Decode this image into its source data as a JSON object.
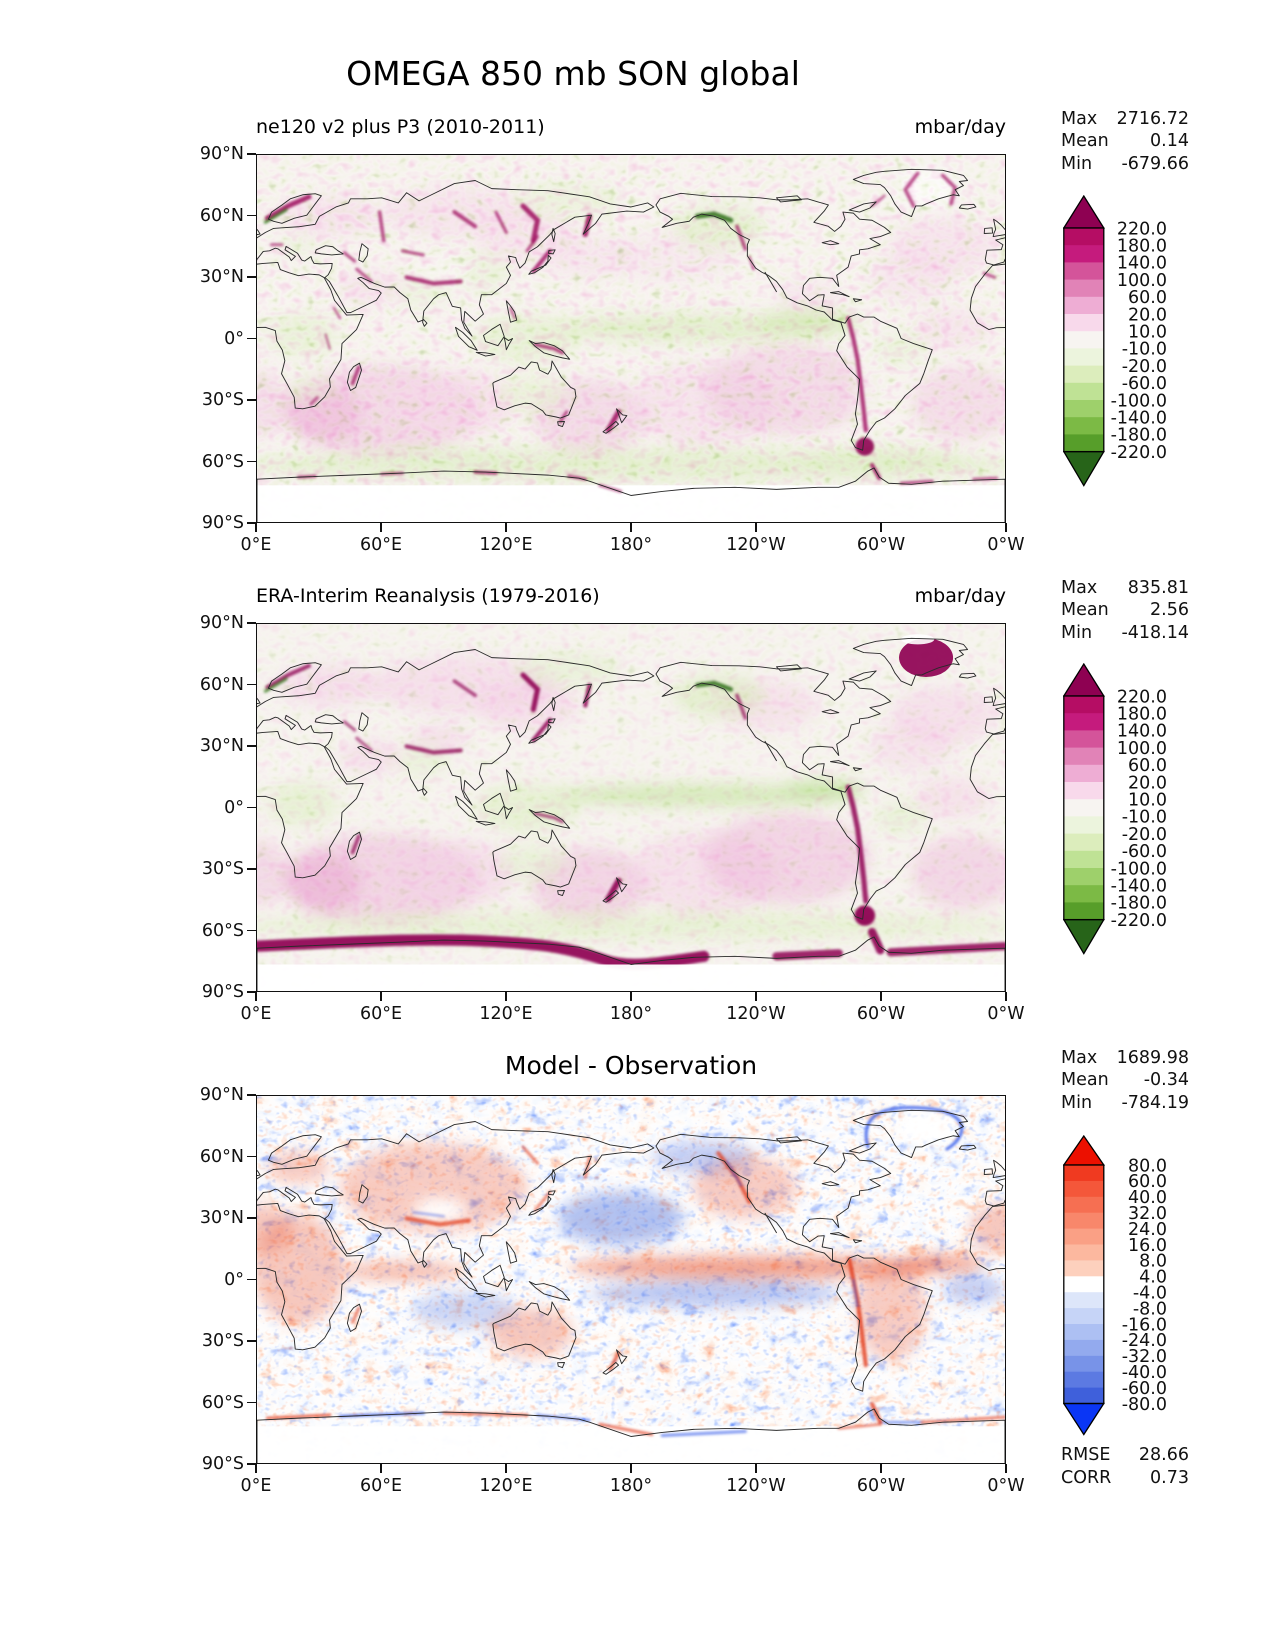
{
  "title": "OMEGA 850 mb SON global",
  "axes": {
    "xticks": [
      "0°E",
      "60°E",
      "120°E",
      "180°",
      "120°W",
      "60°W",
      "0°W"
    ],
    "yticks": [
      "90°N",
      "60°N",
      "30°N",
      "0°",
      "30°S",
      "60°S",
      "90°S"
    ]
  },
  "panels": [
    {
      "subtitle": "ne120 v2 plus P3 (2010-2011)",
      "units": "mbar/day",
      "stats": [
        {
          "label": "Max",
          "value": "2716.72"
        },
        {
          "label": "Mean",
          "value": "0.14"
        },
        {
          "label": "Min",
          "value": "-679.66"
        }
      ],
      "colorbar": {
        "ticks": [
          "220.0",
          "180.0",
          "140.0",
          "100.0",
          "60.0",
          "20.0",
          "10.0",
          "-10.0",
          "-20.0",
          "-60.0",
          "-100.0",
          "-140.0",
          "-180.0",
          "-220.0"
        ],
        "colors": [
          "#8e0152",
          "#b50d64",
          "#c51b7d",
          "#d4549a",
          "#e183b7",
          "#eeadd4",
          "#f8d9eb",
          "#f7f4f1",
          "#ecf4dd",
          "#dcedbc",
          "#bfe295",
          "#9ed06b",
          "#7cba45",
          "#579e2a",
          "#276419"
        ]
      }
    },
    {
      "subtitle": "ERA-Interim Reanalysis (1979-2016)",
      "units": "mbar/day",
      "stats": [
        {
          "label": "Max",
          "value": "835.81"
        },
        {
          "label": "Mean",
          "value": "2.56"
        },
        {
          "label": "Min",
          "value": "-418.14"
        }
      ],
      "colorbar": {
        "ticks": [
          "220.0",
          "180.0",
          "140.0",
          "100.0",
          "60.0",
          "20.0",
          "10.0",
          "-10.0",
          "-20.0",
          "-60.0",
          "-100.0",
          "-140.0",
          "-180.0",
          "-220.0"
        ],
        "colors": [
          "#8e0152",
          "#b50d64",
          "#c51b7d",
          "#d4549a",
          "#e183b7",
          "#eeadd4",
          "#f8d9eb",
          "#f7f4f1",
          "#ecf4dd",
          "#dcedbc",
          "#bfe295",
          "#9ed06b",
          "#7cba45",
          "#579e2a",
          "#276419"
        ]
      }
    },
    {
      "title": "Model - Observation",
      "stats": [
        {
          "label": "Max",
          "value": "1689.98"
        },
        {
          "label": "Mean",
          "value": "-0.34"
        },
        {
          "label": "Min",
          "value": "-784.19"
        }
      ],
      "colorbar": {
        "ticks": [
          "80.0",
          "60.0",
          "40.0",
          "32.0",
          "24.0",
          "16.0",
          "8.0",
          "4.0",
          "-4.0",
          "-8.0",
          "-16.0",
          "-24.0",
          "-32.0",
          "-40.0",
          "-60.0",
          "-80.0"
        ],
        "colors": [
          "#ec1000",
          "#f03a20",
          "#f4573a",
          "#f66f52",
          "#f8876b",
          "#faa085",
          "#fcb89f",
          "#fdd0bd",
          "#ffffff",
          "#dde6fa",
          "#c6d4f7",
          "#adc0f3",
          "#93aaee",
          "#7893e8",
          "#5c7ae2",
          "#3f60db",
          "#0a36f5"
        ]
      },
      "metrics": [
        {
          "label": "RMSE",
          "value": "28.66"
        },
        {
          "label": "CORR",
          "value": "0.73"
        }
      ]
    }
  ],
  "chart_data": {
    "type": "heatmap",
    "title": "OMEGA 850 mb SON global",
    "variable": "OMEGA at 850 mb",
    "season": "SON",
    "region": "global",
    "units": "mbar/day",
    "projection": "lat-lon, 0°E to 0°W, 90°N to 90°S",
    "x_axis": {
      "label": "longitude",
      "ticks": [
        "0°E",
        "60°E",
        "120°E",
        "180°",
        "120°W",
        "60°W",
        "0°W"
      ]
    },
    "y_axis": {
      "label": "latitude",
      "ticks": [
        "90°N",
        "60°N",
        "30°N",
        "0°",
        "30°S",
        "60°S",
        "90°S"
      ]
    },
    "panels": [
      {
        "name": "ne120 v2 plus P3 (2010-2011)",
        "colormap": "pink-green diverging (PiYG reversed)",
        "levels": [
          -220,
          -180,
          -140,
          -100,
          -60,
          -20,
          -10,
          10,
          20,
          60,
          100,
          140,
          180,
          220
        ],
        "stats": {
          "max": 2716.72,
          "mean": 0.14,
          "min": -679.66
        }
      },
      {
        "name": "ERA-Interim Reanalysis (1979-2016)",
        "colormap": "pink-green diverging (PiYG reversed)",
        "levels": [
          -220,
          -180,
          -140,
          -100,
          -60,
          -20,
          -10,
          10,
          20,
          60,
          100,
          140,
          180,
          220
        ],
        "stats": {
          "max": 835.81,
          "mean": 2.56,
          "min": -418.14
        }
      },
      {
        "name": "Model - Observation",
        "colormap": "blue-white-red diverging",
        "levels": [
          -80,
          -60,
          -40,
          -32,
          -24,
          -16,
          -8,
          -4,
          4,
          8,
          16,
          24,
          32,
          40,
          60,
          80
        ],
        "stats": {
          "max": 1689.98,
          "mean": -0.34,
          "min": -784.19
        },
        "rmse": 28.66,
        "corr": 0.73
      }
    ]
  }
}
